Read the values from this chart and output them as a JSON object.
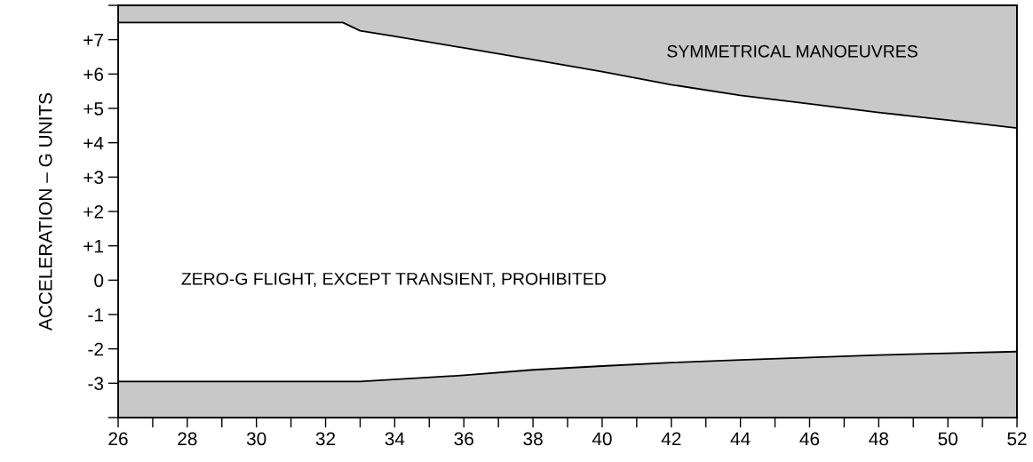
{
  "chart_data": {
    "type": "line",
    "ylabel": "ACCELERATION – G UNITS",
    "series": [
      {
        "color": "#000000",
        "x": [
          26,
          32.5,
          33,
          34,
          36,
          38,
          40,
          42,
          44,
          46,
          48,
          50,
          52
        ],
        "values": [
          7.5,
          7.5,
          7.26,
          7.1,
          6.76,
          6.42,
          6.07,
          5.69,
          5.38,
          5.13,
          4.88,
          4.66,
          4.43
        ],
        "lower": [
          7.5,
          7.5,
          7.26,
          7.1,
          6.76,
          6.42,
          6.07,
          5.69,
          5.38,
          5.13,
          4.88,
          4.66,
          4.43
        ],
        "upper": [
          8,
          8,
          8,
          8,
          8,
          8,
          8,
          8,
          8,
          8,
          8,
          8,
          8
        ]
      },
      {
        "color": "#000000",
        "x": [
          26,
          33,
          36,
          38,
          40,
          42,
          44,
          46,
          48,
          50,
          52
        ],
        "values": [
          -2.95,
          -2.95,
          -2.77,
          -2.61,
          -2.5,
          -2.4,
          -2.32,
          -2.25,
          -2.18,
          -2.13,
          -2.08
        ],
        "lower": [
          -4,
          -4,
          -4,
          -4,
          -4,
          -4,
          -4,
          -4,
          -4,
          -4,
          -4
        ],
        "upper": [
          -2.95,
          -2.95,
          -2.77,
          -2.61,
          -2.5,
          -2.4,
          -2.32,
          -2.25,
          -2.18,
          -2.13,
          -2.08
        ]
      }
    ],
    "xlim": [
      26,
      52
    ],
    "xticks": [
      26,
      {
        "value": 27,
        "label": null
      },
      28,
      {
        "value": 29,
        "label": null
      },
      30,
      {
        "value": 31,
        "label": null
      },
      32,
      {
        "value": 33,
        "label": null
      },
      34,
      {
        "value": 35,
        "label": null
      },
      36,
      {
        "value": 37,
        "label": null
      },
      38,
      {
        "value": 39,
        "label": null
      },
      40,
      {
        "value": 41,
        "label": null
      },
      42,
      {
        "value": 43,
        "label": null
      },
      44,
      {
        "value": 45,
        "label": null
      },
      46,
      {
        "value": 47,
        "label": null
      },
      48,
      {
        "value": 49,
        "label": null
      },
      50,
      {
        "value": 51,
        "label": null
      },
      52
    ],
    "ylim": [
      -4,
      8
    ],
    "yticks": [
      {
        "value": -4,
        "label": null
      },
      -3,
      -2,
      -1,
      0,
      {
        "value": 1,
        "label": "+1"
      },
      {
        "value": 2,
        "label": "+2"
      },
      {
        "value": 3,
        "label": "+3"
      },
      {
        "value": 4,
        "label": "+4"
      },
      {
        "value": 5,
        "label": "+5"
      },
      {
        "value": 6,
        "label": "+6"
      },
      {
        "value": 7,
        "label": "+7"
      },
      {
        "value": 8,
        "label": null
      }
    ],
    "annotations": [
      "SYMMETRICAL MANOEUVRES",
      "ZERO-G FLIGHT, EXCEPT TRANSIENT, PROHIBITED"
    ],
    "grid": false,
    "legend": false
  }
}
